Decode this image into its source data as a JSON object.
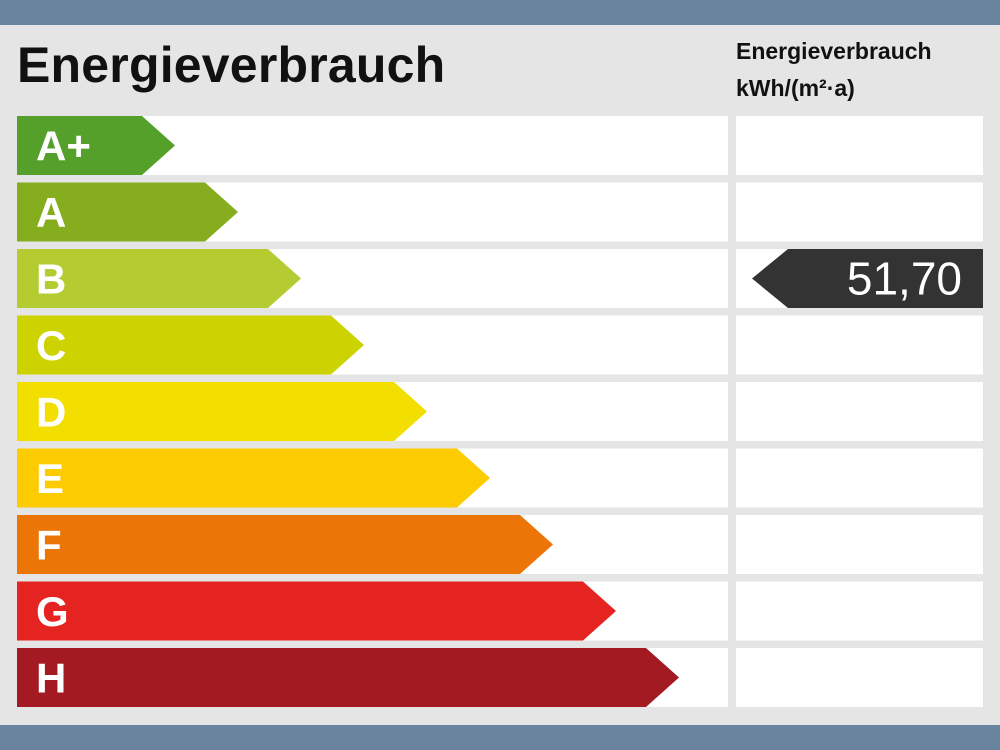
{
  "title": "Energieverbrauch",
  "unit": {
    "heading": "Energieverbrauch",
    "label": "kWh/(m²·a)"
  },
  "chart_data": {
    "type": "bar",
    "title": "Energieverbrauch",
    "categories": [
      "A+",
      "A",
      "B",
      "C",
      "D",
      "E",
      "F",
      "G",
      "H"
    ],
    "colors": [
      "#54a02a",
      "#86ad1e",
      "#b4cc32",
      "#cdd300",
      "#f2df00",
      "#fccc00",
      "#ec7508",
      "#e52421",
      "#a31a23"
    ],
    "indicator": {
      "category": "B",
      "value": "51,70",
      "color": "#333333"
    }
  }
}
